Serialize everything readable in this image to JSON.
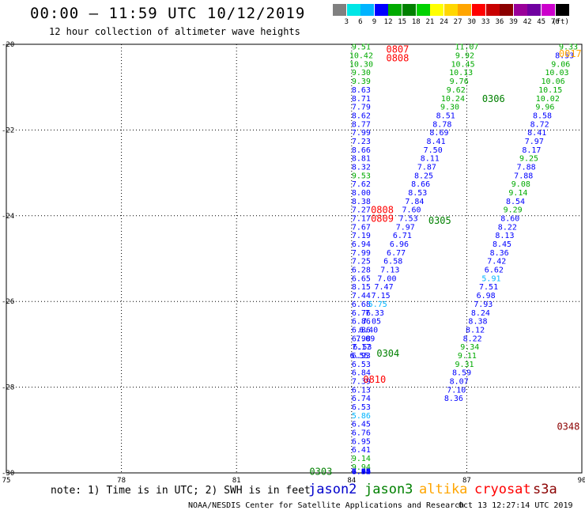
{
  "title": "00:00 – 11:59 UTC 10/12/2019",
  "subtitle": "12 hour collection of altimeter wave heights",
  "legend": {
    "colors": [
      "#808080",
      "#00e6e6",
      "#00b4ff",
      "#0000ff",
      "#00aa00",
      "#008000",
      "#00d200",
      "#ffff00",
      "#ffd700",
      "#ffa500",
      "#ff0000",
      "#c80000",
      "#8b0000",
      "#990099",
      "#7000a0",
      "#cc00cc",
      "#000000"
    ],
    "labels": [
      "3",
      "6",
      "9",
      "12",
      "15",
      "18",
      "21",
      "24",
      "27",
      "30",
      "33",
      "36",
      "39",
      "42",
      "45",
      "70"
    ],
    "units": "(ft)"
  },
  "note": "note: 1) Time is in UTC; 2) SWH is in feet",
  "satellites": [
    {
      "name": "jason2",
      "color": "#0000cc"
    },
    {
      "name": "jason3",
      "color": "#008000"
    },
    {
      "name": "altika",
      "color": "#ffa500"
    },
    {
      "name": "cryosat",
      "color": "#ff0000"
    },
    {
      "name": "s3a",
      "color": "#8b0000"
    }
  ],
  "footer": "NOAA/NESDIS Center for Satellite Applications and Research",
  "timestamp": "Oct 13 12:27:14 UTC 2019",
  "chart_data": {
    "type": "scatter",
    "xlim": [
      75,
      90
    ],
    "ylim": [
      -30,
      -20
    ],
    "xticks": [
      "75",
      "78",
      "81",
      "84",
      "87",
      "90"
    ],
    "yticks": [
      "-20",
      "-22",
      "-24",
      "-26",
      "-28",
      "-30"
    ],
    "grid": true,
    "pass_labels": [
      {
        "text": "0807",
        "x": 84.9,
        "y": -20.1,
        "color": "#ff0000"
      },
      {
        "text": "0808",
        "x": 84.9,
        "y": -20.3,
        "color": "#ff0000"
      },
      {
        "text": "0017",
        "x": 89.4,
        "y": -20.2,
        "color": "#ffa500"
      },
      {
        "text": "0306",
        "x": 87.4,
        "y": -21.25,
        "color": "#008000"
      },
      {
        "text": "0808",
        "x": 84.5,
        "y": -23.85,
        "color": "#ff0000"
      },
      {
        "text": "0809",
        "x": 84.5,
        "y": -24.05,
        "color": "#ff0000"
      },
      {
        "text": "0305",
        "x": 86.0,
        "y": -24.1,
        "color": "#008000"
      },
      {
        "text": "0304",
        "x": 84.65,
        "y": -27.2,
        "color": "#008000"
      },
      {
        "text": "0810",
        "x": 84.3,
        "y": -27.8,
        "color": "#ff0000"
      },
      {
        "text": "0348",
        "x": 89.35,
        "y": -28.9,
        "color": "#8b0000"
      },
      {
        "text": "0303",
        "x": 82.9,
        "y": -29.95,
        "color": "#008000"
      }
    ],
    "series": [
      {
        "name": "jason2",
        "x": [
          84.25,
          84.25,
          84.25,
          84.25,
          84.25,
          84.25,
          84.25,
          84.25,
          84.25,
          84.25,
          84.25,
          84.25,
          84.25,
          84.25,
          84.25,
          84.25,
          84.25,
          84.25,
          84.25,
          84.25,
          84.25,
          84.25,
          84.25,
          84.25,
          84.25,
          84.25,
          84.25,
          84.25,
          84.25,
          84.25,
          84.25,
          84.25,
          84.25,
          84.25,
          84.25,
          84.25,
          84.25,
          84.25,
          84.25,
          84.25,
          84.25,
          84.25,
          84.25,
          84.25,
          84.25,
          84.25,
          84.25,
          84.25,
          84.25,
          84.25,
          84.25,
          84.25,
          84.25,
          84.25,
          84.25,
          84.25,
          84.25,
          84.25,
          84.25,
          84.25,
          84.25,
          84.25
        ],
        "y": [
          -20.05,
          -20.25,
          -20.45,
          -20.65,
          -20.85,
          -21.05,
          -21.25,
          -21.45,
          -21.65,
          -21.85,
          -22.05,
          -22.25,
          -22.45,
          -22.65,
          -22.85,
          -23.05,
          -23.25,
          -23.45,
          -23.65,
          -23.85,
          -24.05,
          -24.25,
          -24.45,
          -24.65,
          -24.85,
          -25.05,
          -25.25,
          -25.45,
          -25.65,
          -25.85,
          -26.05,
          -26.25,
          -26.45,
          -26.65,
          -26.85,
          -27.05,
          -27.25,
          -27.45,
          -27.65,
          -27.85,
          -28.05,
          -28.25,
          -28.45,
          -28.65,
          -28.85,
          -29.05,
          -29.25,
          -29.45,
          -29.65,
          -29.85,
          -29.95,
          -29.95,
          -29.95,
          -29.95,
          -29.95,
          -29.95,
          -29.95,
          -29.95,
          -29.95,
          -29.95,
          -29.95,
          -29.95
        ],
        "values": [
          "9.51",
          "10.42",
          "10.30",
          "9.30",
          "9.39",
          "8.63",
          "8.71",
          "7.79",
          "8.62",
          "8.77",
          "7.99",
          "7.23",
          "8.66",
          "8.81",
          "8.32",
          "9.53",
          "7.62",
          "8.00",
          "8.38",
          "7.27",
          "7.17",
          "7.67",
          "7.19",
          "6.94",
          "7.99",
          "7.25",
          "6.28",
          "6.65",
          "8.15",
          "7.44",
          "6.68",
          "6.76",
          "6.86",
          "6.86",
          "6.98",
          "7.17",
          "6.93",
          "6.53",
          "6.84",
          "7.39",
          "6.13",
          "6.74",
          "6.53",
          "5.86",
          "6.45",
          "6.76",
          "6.95",
          "6.41",
          "9.14",
          "9.94",
          "8.30",
          "7.82",
          "7.40",
          "6.95",
          "7.66",
          "7.52",
          "7.87",
          "7.96",
          "6.64",
          "6.64",
          "6.62",
          "6.66"
        ]
      },
      {
        "name": "jason3",
        "x": [
          87.0,
          86.95,
          86.9,
          86.85,
          86.8,
          86.72,
          86.64,
          86.56,
          86.45,
          86.36,
          86.28,
          86.2,
          86.12,
          86.04,
          85.96,
          85.88,
          85.8,
          85.72,
          85.64,
          85.56,
          85.48,
          85.4,
          85.32,
          85.24,
          85.16,
          85.08,
          85.0,
          84.92,
          84.84,
          84.76,
          84.68,
          84.6,
          84.52,
          84.44,
          84.36,
          84.28,
          84.2
        ],
        "y": [
          -20.05,
          -20.25,
          -20.45,
          -20.65,
          -20.85,
          -21.05,
          -21.25,
          -21.45,
          -21.65,
          -21.85,
          -22.05,
          -22.25,
          -22.45,
          -22.65,
          -22.85,
          -23.05,
          -23.25,
          -23.45,
          -23.65,
          -23.85,
          -24.05,
          -24.25,
          -24.45,
          -24.65,
          -24.85,
          -25.05,
          -25.25,
          -25.45,
          -25.65,
          -25.85,
          -26.05,
          -26.25,
          -26.45,
          -26.65,
          -26.85,
          -27.05,
          -27.25
        ],
        "values": [
          "11.07",
          "9.92",
          "10.45",
          "10.13",
          "9.76",
          "9.62",
          "10.24",
          "9.30",
          "8.51",
          "8.78",
          "8.69",
          "8.41",
          "7.50",
          "8.11",
          "7.87",
          "8.25",
          "8.66",
          "8.53",
          "7.84",
          "7.60",
          "7.53",
          "7.97",
          "6.71",
          "6.96",
          "6.77",
          "6.58",
          "7.13",
          "7.00",
          "7.47",
          "7.15",
          "5.75",
          "7.33",
          "7.05",
          "6.40",
          "7.09",
          "6.53",
          "6.55"
        ]
      },
      {
        "name": "altika",
        "x": [
          89.65,
          89.55,
          89.45,
          89.35,
          89.25,
          89.18,
          89.11,
          89.04,
          88.97,
          88.9,
          88.83,
          88.76,
          88.69,
          88.62,
          88.55,
          88.48,
          88.41,
          88.34,
          88.27,
          88.2,
          88.13,
          88.06,
          87.99,
          87.92,
          87.85,
          87.78,
          87.71,
          87.64,
          87.57,
          87.5,
          87.43,
          87.36,
          87.29,
          87.22,
          87.15,
          87.08,
          87.01,
          86.94,
          86.87,
          86.8,
          86.73,
          86.66
        ],
        "y": [
          -20.05,
          -20.25,
          -20.45,
          -20.65,
          -20.85,
          -21.05,
          -21.25,
          -21.45,
          -21.65,
          -21.85,
          -22.05,
          -22.25,
          -22.45,
          -22.65,
          -22.85,
          -23.05,
          -23.25,
          -23.45,
          -23.65,
          -23.85,
          -24.05,
          -24.25,
          -24.45,
          -24.65,
          -24.85,
          -25.05,
          -25.25,
          -25.45,
          -25.65,
          -25.85,
          -26.05,
          -26.25,
          -26.45,
          -26.65,
          -26.85,
          -27.05,
          -27.25,
          -27.45,
          -27.65,
          -27.85,
          -28.05,
          -28.25
        ],
        "values": [
          "9.33",
          "8.53",
          "9.06",
          "10.03",
          "10.06",
          "10.15",
          "10.02",
          "9.96",
          "8.58",
          "8.72",
          "8.41",
          "7.97",
          "8.17",
          "9.25",
          "7.88",
          "7.88",
          "9.08",
          "9.14",
          "8.54",
          "9.29",
          "8.60",
          "8.22",
          "8.13",
          "8.45",
          "8.36",
          "7.42",
          "6.62",
          "5.91",
          "7.51",
          "6.98",
          "7.93",
          "8.24",
          "8.38",
          "8.12",
          "8.22",
          "9.34",
          "9.11",
          "9.31",
          "8.59",
          "8.07",
          "7.10",
          "8.36"
        ]
      }
    ]
  }
}
